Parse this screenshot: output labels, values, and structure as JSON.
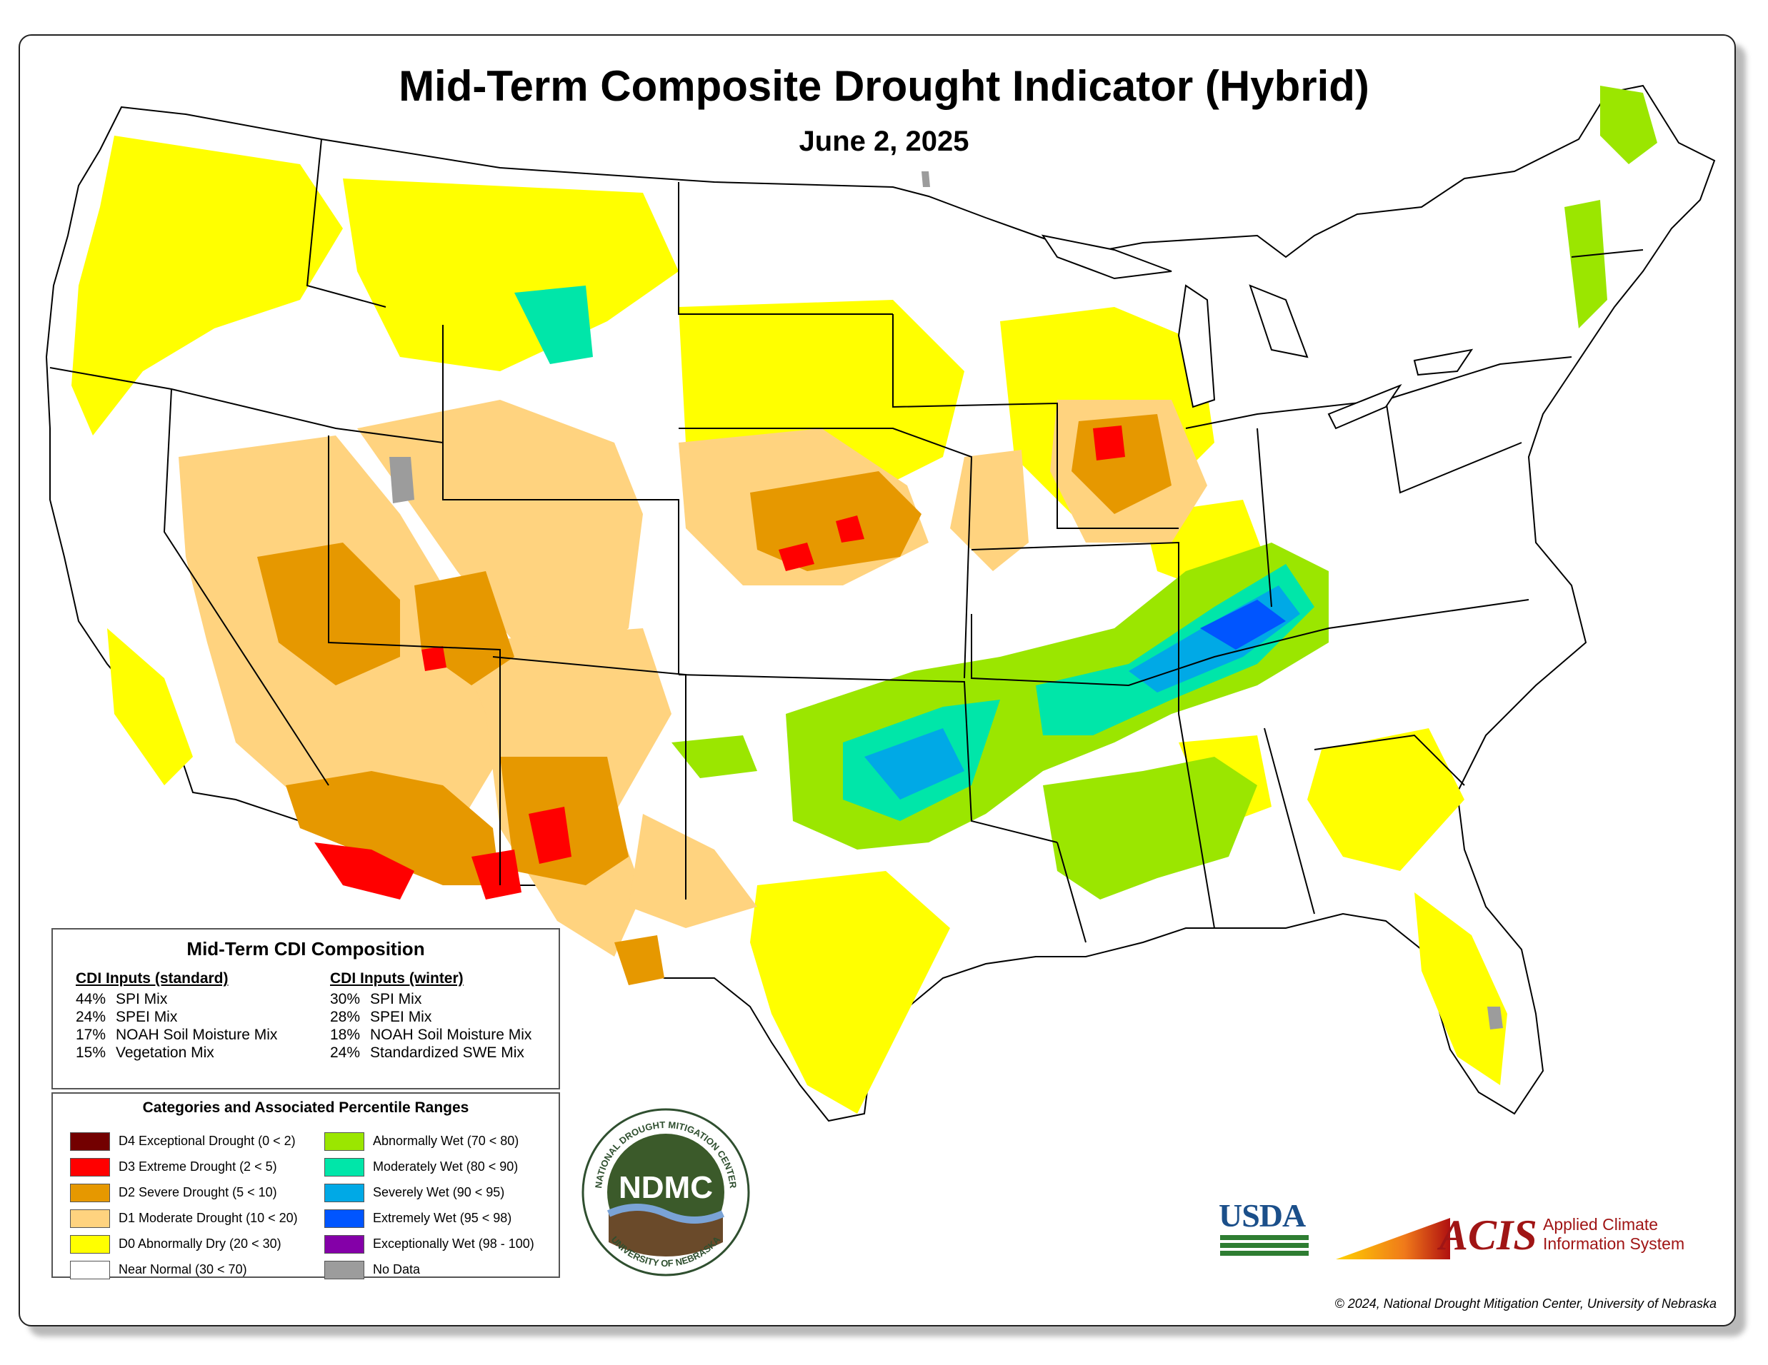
{
  "title": "Mid-Term Composite Drought Indicator (Hybrid)",
  "date": "June 2, 2025",
  "composition": {
    "heading": "Mid-Term CDI Composition",
    "standard": {
      "heading": "CDI Inputs (standard)",
      "rows": [
        {
          "pct": "44%",
          "name": "SPI Mix"
        },
        {
          "pct": "24%",
          "name": "SPEI Mix"
        },
        {
          "pct": "17%",
          "name": "NOAH Soil Moisture Mix"
        },
        {
          "pct": "15%",
          "name": "Vegetation Mix"
        }
      ]
    },
    "winter": {
      "heading": "CDI Inputs (winter)",
      "rows": [
        {
          "pct": "30%",
          "name": "SPI Mix"
        },
        {
          "pct": "28%",
          "name": "SPEI Mix"
        },
        {
          "pct": "18%",
          "name": "NOAH Soil Moisture Mix"
        },
        {
          "pct": "24%",
          "name": "Standardized SWE Mix"
        }
      ]
    }
  },
  "categories": {
    "heading": "Categories and Associated Percentile Ranges",
    "dry": [
      {
        "label": "D4 Exceptional Drought (0 < 2)",
        "color": "#730000"
      },
      {
        "label": "D3 Extreme Drought (2 < 5)",
        "color": "#ff0000"
      },
      {
        "label": "D2 Severe Drought (5 < 10)",
        "color": "#e69800"
      },
      {
        "label": "D1 Moderate Drought (10 < 20)",
        "color": "#ffd37f"
      },
      {
        "label": "D0 Abnormally Dry (20 < 30)",
        "color": "#ffff00"
      },
      {
        "label": "Near Normal (30 < 70)",
        "color": "#ffffff"
      }
    ],
    "wet": [
      {
        "label": "Abnormally Wet (70 < 80)",
        "color": "#9be600"
      },
      {
        "label": "Moderately Wet (80 < 90)",
        "color": "#00e6a9"
      },
      {
        "label": "Severely Wet (90 < 95)",
        "color": "#00a9e6"
      },
      {
        "label": "Extremely Wet (95 < 98)",
        "color": "#0055ff"
      },
      {
        "label": "Exceptionally Wet (98 - 100)",
        "color": "#8400a8"
      },
      {
        "label": "No Data",
        "color": "#9c9c9c"
      }
    ]
  },
  "logos": {
    "ndmc_ring_top": "NATIONAL DROUGHT MITIGATION CENTER",
    "ndmc_ring_bottom": "UNIVERSITY OF NEBRASKA",
    "ndmc_center": "NDMC",
    "usda": "USDA",
    "acis": "ACIS",
    "acis_line1": "Applied Climate",
    "acis_line2": "Information System"
  },
  "copyright": "© 2024, National Drought Mitigation Center, University of Nebraska"
}
